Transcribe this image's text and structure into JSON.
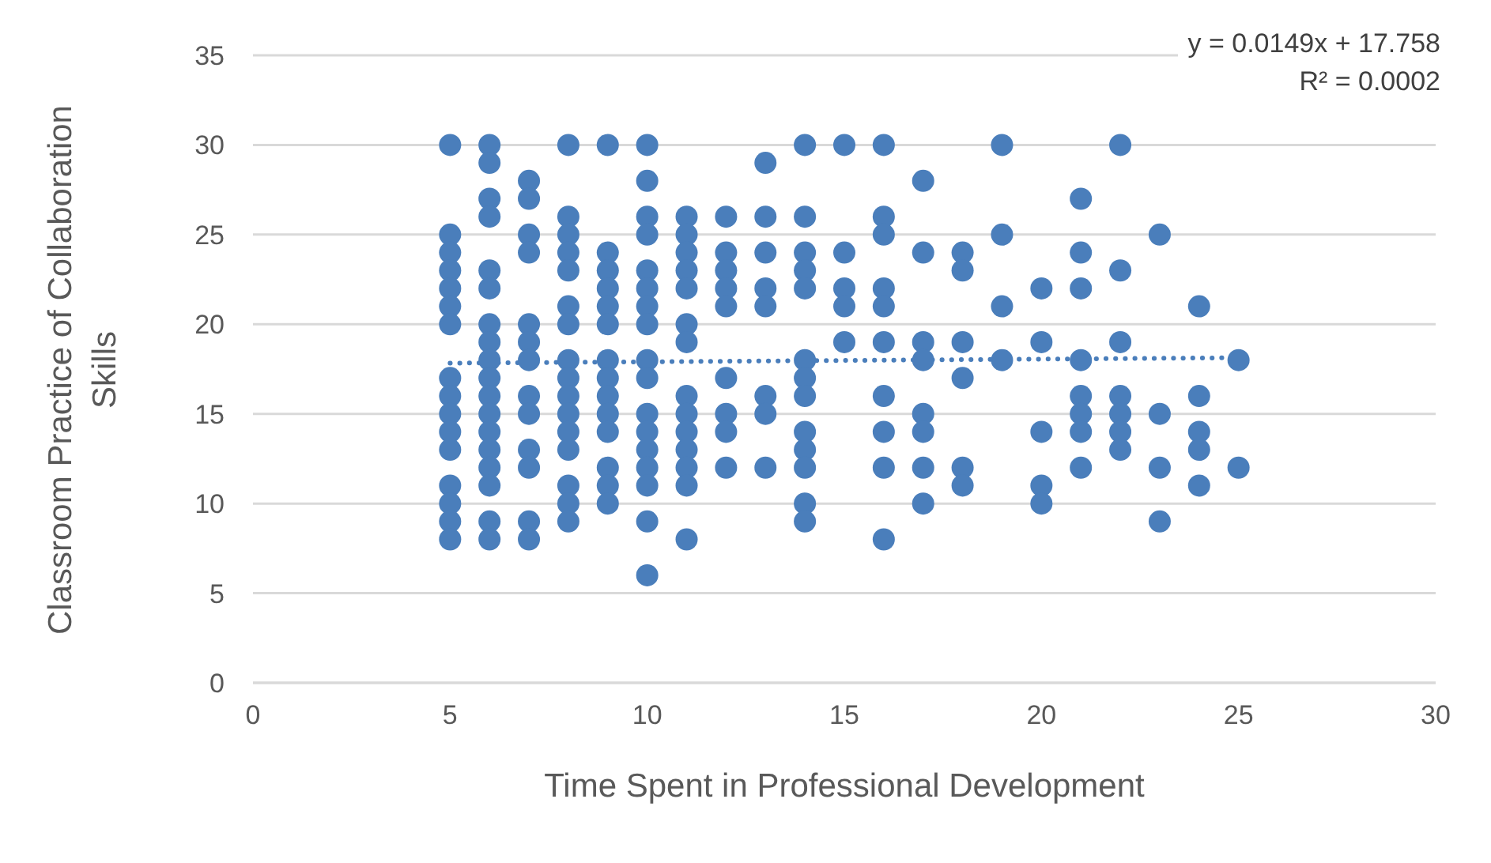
{
  "chart_data": {
    "type": "scatter",
    "xlabel": "Time Spent in Professional Development",
    "ylabel": "Classroom Practice of Collaboration Skills",
    "annotations": [
      "y = 0.0149x + 17.758",
      "R² = 0.0002"
    ],
    "xlim": [
      0,
      30
    ],
    "xticks": [
      0,
      5,
      10,
      15,
      20,
      25,
      30
    ],
    "ylim": [
      0,
      35
    ],
    "yticks": [
      0,
      5,
      10,
      15,
      20,
      25,
      30,
      35
    ],
    "grid": "y",
    "marker": "circle",
    "series": [
      {
        "color": "#4a7ebb",
        "x": [
          5,
          5,
          5,
          5,
          5,
          5,
          5,
          5,
          5,
          5,
          5,
          5,
          5,
          5,
          5,
          5,
          6,
          6,
          6,
          6,
          6,
          6,
          6,
          6,
          6,
          6,
          6,
          6,
          6,
          6,
          6,
          6,
          6,
          6,
          7,
          7,
          7,
          7,
          7,
          7,
          7,
          7,
          7,
          7,
          7,
          7,
          7,
          8,
          8,
          8,
          8,
          8,
          8,
          8,
          8,
          8,
          8,
          8,
          8,
          8,
          8,
          8,
          8,
          9,
          9,
          9,
          9,
          9,
          9,
          9,
          9,
          9,
          9,
          9,
          9,
          9,
          9,
          10,
          10,
          10,
          10,
          10,
          10,
          10,
          10,
          10,
          10,
          10,
          10,
          10,
          10,
          10,
          10,
          10,
          11,
          11,
          11,
          11,
          11,
          11,
          11,
          11,
          11,
          11,
          11,
          11,
          11,
          11,
          12,
          12,
          12,
          12,
          12,
          12,
          12,
          12,
          12,
          13,
          13,
          13,
          13,
          13,
          13,
          13,
          13,
          14,
          14,
          14,
          14,
          14,
          14,
          14,
          14,
          14,
          14,
          14,
          14,
          14,
          15,
          15,
          15,
          15,
          15,
          16,
          16,
          16,
          16,
          16,
          16,
          16,
          16,
          16,
          16,
          17,
          17,
          17,
          17,
          17,
          17,
          17,
          17,
          18,
          18,
          18,
          18,
          18,
          18,
          19,
          19,
          19,
          19,
          20,
          20,
          20,
          20,
          20,
          21,
          21,
          21,
          21,
          21,
          21,
          21,
          21,
          22,
          22,
          22,
          22,
          22,
          22,
          22,
          23,
          23,
          23,
          23,
          24,
          24,
          24,
          24,
          24,
          25,
          25
        ],
        "values": [
          30,
          25,
          24,
          23,
          22,
          21,
          20,
          17,
          16,
          15,
          14,
          13,
          11,
          10,
          9,
          8,
          30,
          29,
          27,
          26,
          23,
          22,
          20,
          19,
          18,
          17,
          16,
          15,
          14,
          13,
          12,
          11,
          9,
          8,
          28,
          27,
          25,
          24,
          20,
          19,
          18,
          16,
          15,
          13,
          12,
          9,
          8,
          30,
          26,
          25,
          24,
          23,
          21,
          20,
          18,
          17,
          16,
          15,
          14,
          13,
          11,
          10,
          9,
          30,
          24,
          23,
          22,
          21,
          20,
          18,
          17,
          16,
          15,
          14,
          12,
          11,
          10,
          30,
          28,
          26,
          25,
          23,
          22,
          21,
          20,
          18,
          17,
          15,
          14,
          13,
          12,
          11,
          9,
          6,
          26,
          25,
          24,
          23,
          22,
          20,
          19,
          16,
          15,
          14,
          13,
          12,
          11,
          8,
          26,
          24,
          23,
          22,
          21,
          17,
          15,
          14,
          12,
          29,
          26,
          24,
          22,
          21,
          16,
          15,
          12,
          30,
          26,
          24,
          23,
          22,
          18,
          17,
          16,
          14,
          13,
          12,
          10,
          9,
          30,
          24,
          22,
          21,
          19,
          30,
          26,
          25,
          22,
          21,
          19,
          16,
          14,
          12,
          8,
          28,
          24,
          19,
          18,
          15,
          14,
          12,
          10,
          24,
          23,
          19,
          17,
          12,
          11,
          30,
          25,
          21,
          18,
          22,
          19,
          14,
          11,
          10,
          27,
          24,
          22,
          18,
          16,
          15,
          14,
          12,
          30,
          23,
          19,
          16,
          15,
          14,
          13,
          25,
          15,
          12,
          9,
          21,
          16,
          14,
          13,
          11,
          18,
          12
        ]
      },
      {
        "type": "line",
        "color": "#4a7ebb",
        "line_style": "dotted",
        "marker": "none",
        "x": [
          5,
          25
        ],
        "values": [
          17.83,
          18.13
        ]
      }
    ]
  }
}
